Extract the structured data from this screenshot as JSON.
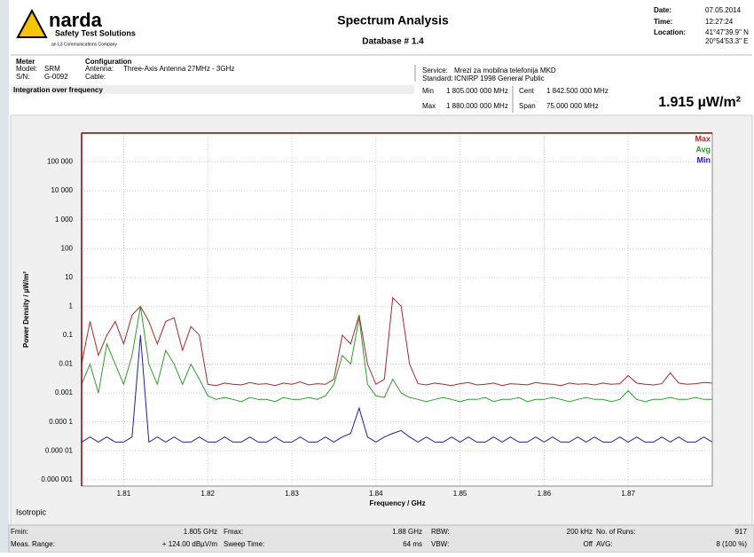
{
  "header": {
    "brand": "narda",
    "brand_sub": "Safety Test Solutions",
    "brand_parent": "an L3 Communications Company",
    "title": "Spectrum Analysis",
    "database": "Database # 1.4",
    "date_label": "Date:",
    "date": "07.05.2014",
    "time_label": "Time:",
    "time": "12:27:24",
    "location_label": "Location:",
    "location_lat": "41°47'39.9\" N",
    "location_lon": "20°54'53.3\" E",
    "meter": "Meter",
    "model_label": "Model:",
    "model": "SRM",
    "sn_label": "S/N:",
    "sn": "G-0092",
    "configuration": "Configuration",
    "antenna_label": "Antenna:",
    "antenna": "Three-Axis Antenna 27MHz - 3GHz",
    "cable_label": "Cable:",
    "service_label": "Service:",
    "service": "Mrezi za mobilna telefonija MKD",
    "standard_label": "Standard:",
    "standard": "ICNIRP 1998 General Public",
    "mode": "Integration over frequency",
    "min_label": "Min",
    "min": "1 805.000 000 MHz",
    "max_label": "Max",
    "max": "1 880.000 000 MHz",
    "cent_label": "Cent",
    "cent": "1 842.500 000 MHz",
    "span_label": "Span",
    "span": "75.000 000 MHz",
    "result": "1.915 µW/m²"
  },
  "chart_data": {
    "type": "line",
    "y_label": "Power Density / µW/m²",
    "x_label": "Frequency / GHz",
    "log_y": true,
    "grid": true,
    "legend": "top-right",
    "note": "Isotropic",
    "xlim": [
      1.805,
      1.88
    ],
    "xticks": [
      1.81,
      1.82,
      1.83,
      1.84,
      1.85,
      1.86,
      1.87
    ],
    "ylim": [
      6e-07,
      1000000
    ],
    "yticks": [
      {
        "value": 1e-06,
        "label": "0.000 001"
      },
      {
        "value": 1e-05,
        "label": "0.000 01"
      },
      {
        "value": 0.0001,
        "label": "0.000 1"
      },
      0.001,
      0.01,
      0.1,
      1,
      10,
      100,
      {
        "value": 1000,
        "label": "1 000"
      },
      {
        "value": 10000,
        "label": "10 000"
      },
      {
        "value": 100000,
        "label": "100 000"
      }
    ],
    "x": [
      1.805,
      1.806,
      1.807,
      1.808,
      1.809,
      1.81,
      1.811,
      1.812,
      1.813,
      1.814,
      1.815,
      1.816,
      1.817,
      1.818,
      1.819,
      1.82,
      1.821,
      1.822,
      1.823,
      1.824,
      1.825,
      1.826,
      1.827,
      1.828,
      1.829,
      1.83,
      1.831,
      1.832,
      1.833,
      1.834,
      1.835,
      1.836,
      1.837,
      1.838,
      1.839,
      1.84,
      1.841,
      1.842,
      1.843,
      1.844,
      1.845,
      1.846,
      1.847,
      1.848,
      1.849,
      1.85,
      1.851,
      1.852,
      1.853,
      1.854,
      1.855,
      1.856,
      1.857,
      1.858,
      1.859,
      1.86,
      1.861,
      1.862,
      1.863,
      1.864,
      1.865,
      1.866,
      1.867,
      1.868,
      1.869,
      1.87,
      1.871,
      1.872,
      1.873,
      1.874,
      1.875,
      1.876,
      1.877,
      1.878,
      1.879,
      1.88
    ],
    "series": [
      {
        "name": "Max",
        "color": "#a52a2a",
        "values": [
          0.01,
          0.3,
          0.02,
          0.1,
          0.3,
          0.05,
          0.5,
          1,
          0.3,
          0.05,
          0.3,
          0.4,
          0.03,
          0.2,
          0.1,
          0.002,
          0.0018,
          0.0022,
          0.002,
          0.0019,
          0.0023,
          0.002,
          0.0021,
          0.0018,
          0.0022,
          0.002,
          0.0024,
          0.0019,
          0.0021,
          0.002,
          0.003,
          0.1,
          0.05,
          0.5,
          0.01,
          0.002,
          0.003,
          2,
          1,
          0.01,
          0.0021,
          0.0019,
          0.0022,
          0.002,
          0.0018,
          0.0021,
          0.0023,
          0.0019,
          0.002,
          0.0022,
          0.0018,
          0.0021,
          0.002,
          0.0019,
          0.0023,
          0.0021,
          0.002,
          0.0018,
          0.0022,
          0.002,
          0.0021,
          0.0019,
          0.0022,
          0.002,
          0.0021,
          0.004,
          0.0022,
          0.002,
          0.0019,
          0.0021,
          0.005,
          0.0022,
          0.002,
          0.0021,
          0.0023,
          0.0022
        ]
      },
      {
        "name": "Avg",
        "color": "#2e9b2e",
        "values": [
          0.002,
          0.01,
          0.001,
          0.05,
          0.01,
          0.002,
          0.02,
          1,
          0.01,
          0.002,
          0.03,
          0.01,
          0.002,
          0.01,
          0.003,
          0.0008,
          0.0006,
          0.0007,
          0.0006,
          0.0005,
          0.0007,
          0.0006,
          0.0006,
          0.0005,
          0.0007,
          0.0006,
          0.0006,
          0.0007,
          0.0006,
          0.0008,
          0.002,
          0.02,
          0.01,
          0.4,
          0.002,
          0.0008,
          0.0007,
          0.003,
          0.001,
          0.0007,
          0.0006,
          0.0005,
          0.0006,
          0.0007,
          0.0006,
          0.0005,
          0.0006,
          0.0006,
          0.0007,
          0.0005,
          0.0006,
          0.0006,
          0.0007,
          0.0005,
          0.0006,
          0.0006,
          0.0007,
          0.0006,
          0.0005,
          0.0006,
          0.0007,
          0.0006,
          0.0006,
          0.0005,
          0.0006,
          0.0012,
          0.0006,
          0.0005,
          0.0006,
          0.0006,
          0.0007,
          0.0006,
          0.0006,
          0.0007,
          0.0006,
          0.0006
        ]
      },
      {
        "name": "Min",
        "color": "#2020a0",
        "values": [
          2e-05,
          3e-05,
          2e-05,
          3e-05,
          2e-05,
          2e-05,
          3e-05,
          0.1,
          2e-05,
          3e-05,
          2e-05,
          3e-05,
          2e-05,
          2e-05,
          3e-05,
          2e-05,
          2e-05,
          3e-05,
          2e-05,
          2e-05,
          3e-05,
          2e-05,
          2e-05,
          3e-05,
          2e-05,
          2e-05,
          3e-05,
          2e-05,
          2e-05,
          3e-05,
          2e-05,
          3e-05,
          4e-05,
          0.0003,
          3e-05,
          2e-05,
          3e-05,
          4e-05,
          5e-05,
          3e-05,
          2e-05,
          3e-05,
          2e-05,
          2e-05,
          3e-05,
          2e-05,
          3e-05,
          2e-05,
          2e-05,
          3e-05,
          2e-05,
          3e-05,
          2e-05,
          2e-05,
          3e-05,
          2e-05,
          3e-05,
          2e-05,
          2e-05,
          3e-05,
          2e-05,
          3e-05,
          2e-05,
          2e-05,
          3e-05,
          2e-05,
          3e-05,
          2e-05,
          2e-05,
          3e-05,
          2e-05,
          3e-05,
          2e-05,
          2e-05,
          3e-05,
          2e-05
        ]
      }
    ]
  },
  "footer": {
    "fmin_label": "Fmin:",
    "fmin": "1.805 GHz",
    "fmax_label": "Fmax:",
    "fmax": "1.88 GHz",
    "rbw_label": "RBW:",
    "rbw": "200 kHz",
    "runs_label": "No. of Runs:",
    "runs": "917",
    "range_label": "Meas. Range:",
    "range": "+ 124.00 dBµV/m",
    "sweep_label": "Sweep Time:",
    "sweep": "64 ms",
    "vbw_label": "VBW:",
    "vbw": "Off",
    "avg_label": "AVG:",
    "avg": "8 (100 %)"
  }
}
